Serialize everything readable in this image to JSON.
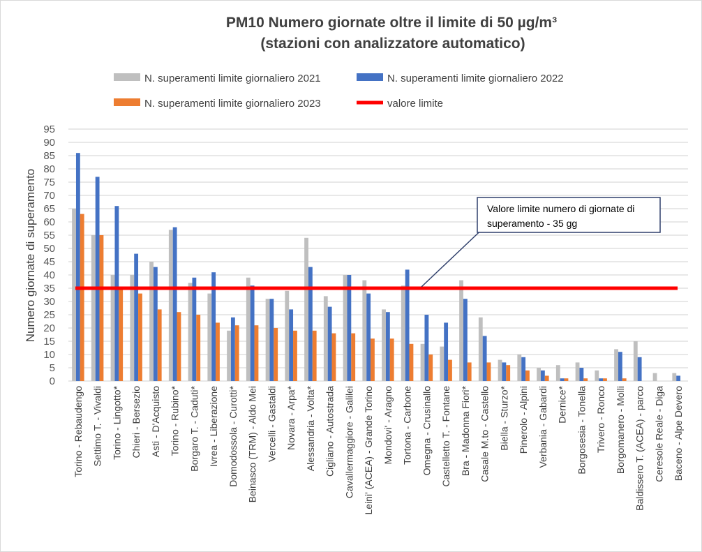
{
  "chart_data": {
    "type": "bar",
    "title_line1": "PM10 Numero giornate oltre il limite di 50 µg/m³",
    "title_line2": "(stazioni con analizzatore automatico)",
    "ylabel": "Numero giornate di superamento",
    "xlabel": "",
    "ylim": [
      0,
      95
    ],
    "ytick_step": 5,
    "grid": true,
    "legend_placement": "top",
    "categories": [
      "Torino - Rebaudengo",
      "Settimo T. - Vivaldi",
      "Torino - Lingotto*",
      "Chieri - Bersezio",
      "Asti - D'Acquisto",
      "Torino - Rubino*",
      "Borgaro T. - Caduti*",
      "Ivrea - Liberazione",
      "Domodossola - Curotti*",
      "Beinasco (TRM) - Aldo Mei",
      "Vercelli - Gastaldi",
      "Novara - Arpa*",
      "Alessandria - Volta*",
      "Cigliano - Autostrada",
      "Cavallermaggiore - Galilei",
      "Leini' (ACEA) - Grande Torino",
      "Mondovi' - Aragno",
      "Tortona - Carbone",
      "Omegna - Crusinallo",
      "Castelletto T. - Fontane",
      "Bra - Madonna Fiori*",
      "Casale M.to - Castello",
      "Biella - Sturzo*",
      "Pinerolo - Alpini",
      "Verbania - Gabardi",
      "Dernice*",
      "Borgosesia - Tonella",
      "Trivero - Ronco",
      "Borgomanero - Molli",
      "Baldissero T. (ACEA) - parco",
      "Ceresole Reale - Diga",
      "Baceno - Alpe Devero"
    ],
    "series": [
      {
        "name": "N. superamenti limite giornaliero 2021",
        "color": "#bfbfbf",
        "values": [
          65,
          55,
          40,
          40,
          45,
          57,
          37,
          33,
          19,
          39,
          31,
          34,
          54,
          32,
          40,
          38,
          27,
          36,
          14,
          13,
          38,
          24,
          8,
          10,
          5,
          6,
          7,
          4,
          12,
          15,
          3,
          3
        ]
      },
      {
        "name": "N. superamenti  limite giornaliero 2022",
        "color": "#4472c4",
        "values": [
          86,
          77,
          66,
          48,
          43,
          58,
          39,
          41,
          24,
          36,
          31,
          27,
          43,
          28,
          40,
          33,
          26,
          42,
          25,
          22,
          31,
          17,
          7,
          9,
          4,
          1,
          5,
          1,
          11,
          9,
          null,
          2
        ]
      },
      {
        "name": "N. superamenti  limite giornaliero 2023",
        "color": "#ed7d31",
        "values": [
          63,
          55,
          35,
          33,
          27,
          26,
          25,
          22,
          21,
          21,
          20,
          19,
          19,
          18,
          18,
          16,
          16,
          14,
          10,
          8,
          7,
          7,
          6,
          4,
          2,
          1,
          1,
          1,
          1,
          null,
          null,
          null
        ]
      }
    ],
    "limit_line": {
      "name": "valore limite",
      "value": 35,
      "color": "#ff0000"
    },
    "annotation": {
      "line1": "Valore limite numero di giornate di",
      "line2": "superamento - 35 gg"
    }
  }
}
